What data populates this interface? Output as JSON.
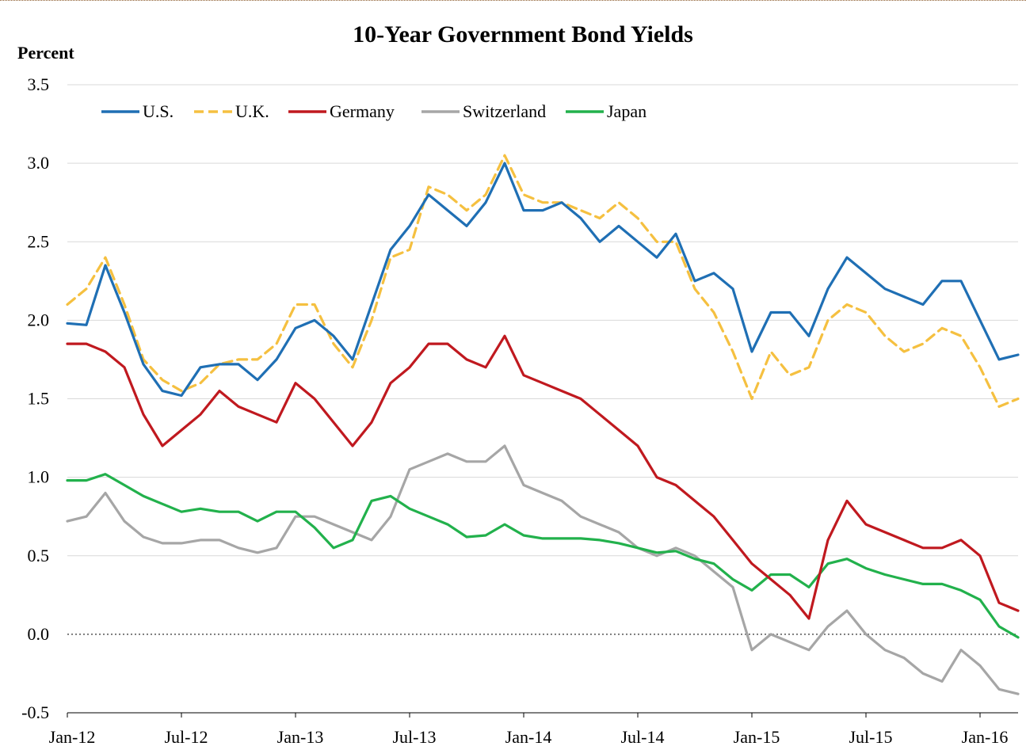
{
  "chart_data": {
    "type": "line",
    "title": "10-Year Government Bond Yields",
    "ylabel": "Percent",
    "xlabel": "",
    "ylim": [
      -0.5,
      3.5
    ],
    "yticks": [
      "3.5",
      "3.0",
      "2.5",
      "2.0",
      "1.5",
      "1.0",
      "0.5",
      "0.0",
      "-0.5"
    ],
    "ytick_values": [
      3.5,
      3.0,
      2.5,
      2.0,
      1.5,
      1.0,
      0.5,
      0.0,
      -0.5
    ],
    "xlim": [
      "2012-01",
      "2016-03"
    ],
    "xticks": [
      "Jan-12",
      "Jul-12",
      "Jan-13",
      "Jul-13",
      "Jan-14",
      "Jul-14",
      "Jan-15",
      "Jul-15",
      "Jan-16"
    ],
    "xtick_dates": [
      "2012-01",
      "2012-07",
      "2013-01",
      "2013-07",
      "2014-01",
      "2014-07",
      "2015-01",
      "2015-07",
      "2016-01"
    ],
    "grid": "horizontal",
    "reference_line": 0.0,
    "legend_position": "top-left",
    "x": [
      "2012-01",
      "2012-02",
      "2012-03",
      "2012-04",
      "2012-05",
      "2012-06",
      "2012-07",
      "2012-08",
      "2012-09",
      "2012-10",
      "2012-11",
      "2012-12",
      "2013-01",
      "2013-02",
      "2013-03",
      "2013-04",
      "2013-05",
      "2013-06",
      "2013-07",
      "2013-08",
      "2013-09",
      "2013-10",
      "2013-11",
      "2013-12",
      "2014-01",
      "2014-02",
      "2014-03",
      "2014-04",
      "2014-05",
      "2014-06",
      "2014-07",
      "2014-08",
      "2014-09",
      "2014-10",
      "2014-11",
      "2014-12",
      "2015-01",
      "2015-02",
      "2015-03",
      "2015-04",
      "2015-05",
      "2015-06",
      "2015-07",
      "2015-08",
      "2015-09",
      "2015-10",
      "2015-11",
      "2015-12",
      "2016-01",
      "2016-02",
      "2016-03"
    ],
    "series": [
      {
        "name": "U.S.",
        "color": "#1f6fb4",
        "dash": "solid",
        "values": [
          1.98,
          1.97,
          2.35,
          2.05,
          1.72,
          1.55,
          1.52,
          1.7,
          1.72,
          1.72,
          1.62,
          1.75,
          1.95,
          2.0,
          1.9,
          1.75,
          2.1,
          2.45,
          2.6,
          2.8,
          2.7,
          2.6,
          2.75,
          3.0,
          2.7,
          2.7,
          2.75,
          2.65,
          2.5,
          2.6,
          2.5,
          2.4,
          2.55,
          2.25,
          2.3,
          2.2,
          1.8,
          2.05,
          2.05,
          1.9,
          2.2,
          2.4,
          2.3,
          2.2,
          2.15,
          2.1,
          2.25,
          2.25,
          2.0,
          1.75,
          1.78
        ]
      },
      {
        "name": "U.K.",
        "color": "#f5c040",
        "dash": "dashed",
        "values": [
          2.1,
          2.2,
          2.4,
          2.1,
          1.75,
          1.62,
          1.55,
          1.6,
          1.72,
          1.75,
          1.75,
          1.85,
          2.1,
          2.1,
          1.85,
          1.7,
          2.0,
          2.4,
          2.45,
          2.85,
          2.8,
          2.7,
          2.8,
          3.05,
          2.8,
          2.75,
          2.75,
          2.7,
          2.65,
          2.75,
          2.65,
          2.5,
          2.5,
          2.2,
          2.05,
          1.8,
          1.5,
          1.8,
          1.65,
          1.7,
          2.0,
          2.1,
          2.05,
          1.9,
          1.8,
          1.85,
          1.95,
          1.9,
          1.7,
          1.45,
          1.5
        ]
      },
      {
        "name": "Germany",
        "color": "#c0191f",
        "dash": "solid",
        "values": [
          1.85,
          1.85,
          1.8,
          1.7,
          1.4,
          1.2,
          1.3,
          1.4,
          1.55,
          1.45,
          1.4,
          1.35,
          1.6,
          1.5,
          1.35,
          1.2,
          1.35,
          1.6,
          1.7,
          1.85,
          1.85,
          1.75,
          1.7,
          1.9,
          1.65,
          1.6,
          1.55,
          1.5,
          1.4,
          1.3,
          1.2,
          1.0,
          0.95,
          0.85,
          0.75,
          0.6,
          0.45,
          0.35,
          0.25,
          0.1,
          0.6,
          0.85,
          0.7,
          0.65,
          0.6,
          0.55,
          0.55,
          0.6,
          0.5,
          0.2,
          0.15
        ]
      },
      {
        "name": "Switzerland",
        "color": "#a6a6a6",
        "dash": "solid",
        "values": [
          0.72,
          0.75,
          0.9,
          0.72,
          0.62,
          0.58,
          0.58,
          0.6,
          0.6,
          0.55,
          0.52,
          0.55,
          0.75,
          0.75,
          0.7,
          0.65,
          0.6,
          0.75,
          1.05,
          1.1,
          1.15,
          1.1,
          1.1,
          1.2,
          0.95,
          0.9,
          0.85,
          0.75,
          0.7,
          0.65,
          0.55,
          0.5,
          0.55,
          0.5,
          0.4,
          0.3,
          -0.1,
          0.0,
          -0.05,
          -0.1,
          0.05,
          0.15,
          0.0,
          -0.1,
          -0.15,
          -0.25,
          -0.3,
          -0.1,
          -0.2,
          -0.35,
          -0.38
        ]
      },
      {
        "name": "Japan",
        "color": "#22b14c",
        "dash": "solid",
        "values": [
          0.98,
          0.98,
          1.02,
          0.95,
          0.88,
          0.83,
          0.78,
          0.8,
          0.78,
          0.78,
          0.72,
          0.78,
          0.78,
          0.68,
          0.55,
          0.6,
          0.85,
          0.88,
          0.8,
          0.75,
          0.7,
          0.62,
          0.63,
          0.7,
          0.63,
          0.61,
          0.61,
          0.61,
          0.6,
          0.58,
          0.55,
          0.52,
          0.53,
          0.48,
          0.45,
          0.35,
          0.28,
          0.38,
          0.38,
          0.3,
          0.45,
          0.48,
          0.42,
          0.38,
          0.35,
          0.32,
          0.32,
          0.28,
          0.22,
          0.05,
          -0.02
        ]
      }
    ]
  }
}
